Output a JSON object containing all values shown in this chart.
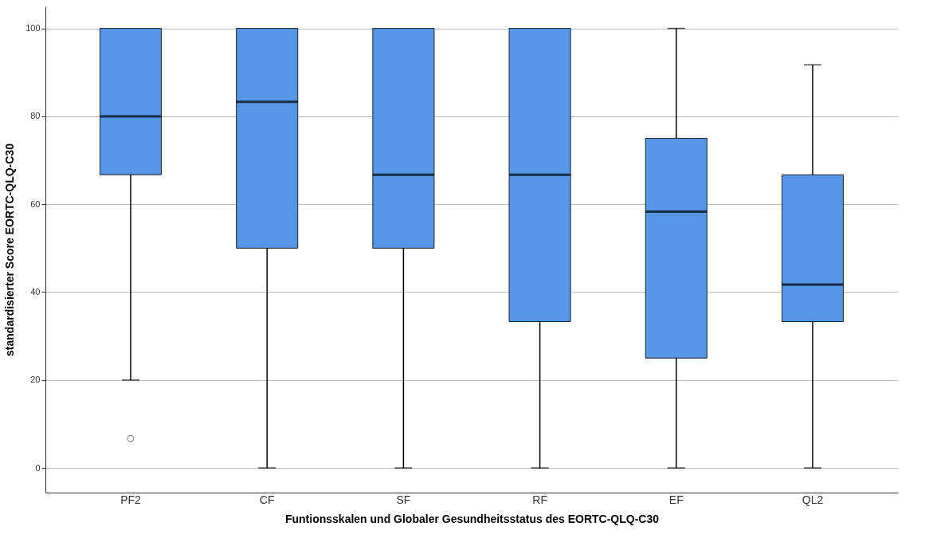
{
  "chart_data": {
    "type": "box",
    "xlabel": "Funtionsskalen und Globaler Gesundheitsstatus des EORTC-QLQ-C30",
    "ylabel": "standardisierter Score EORTC-QLQ-C30",
    "categories": [
      "PF2",
      "CF",
      "SF",
      "RF",
      "EF",
      "QL2"
    ],
    "ylim": [
      -5.6,
      105
    ],
    "yticks": [
      0,
      20,
      40,
      60,
      80,
      100
    ],
    "grid": "y",
    "series": [
      {
        "color": "#5596e6",
        "boxes": [
          {
            "low": 20,
            "q1": 66.7,
            "median": 80,
            "q3": 100,
            "high": 100,
            "outliers": [
              6.7
            ]
          },
          {
            "low": 0,
            "q1": 50,
            "median": 83.3,
            "q3": 100,
            "high": 100
          },
          {
            "low": 0,
            "q1": 50,
            "median": 66.7,
            "q3": 100,
            "high": 100
          },
          {
            "low": 0,
            "q1": 33.3,
            "median": 66.7,
            "q3": 100,
            "high": 100
          },
          {
            "low": 0,
            "q1": 25,
            "median": 58.3,
            "q3": 75,
            "high": 100
          },
          {
            "low": 0,
            "q1": 33.3,
            "median": 41.7,
            "q3": 66.7,
            "high": 91.7
          }
        ]
      }
    ]
  }
}
